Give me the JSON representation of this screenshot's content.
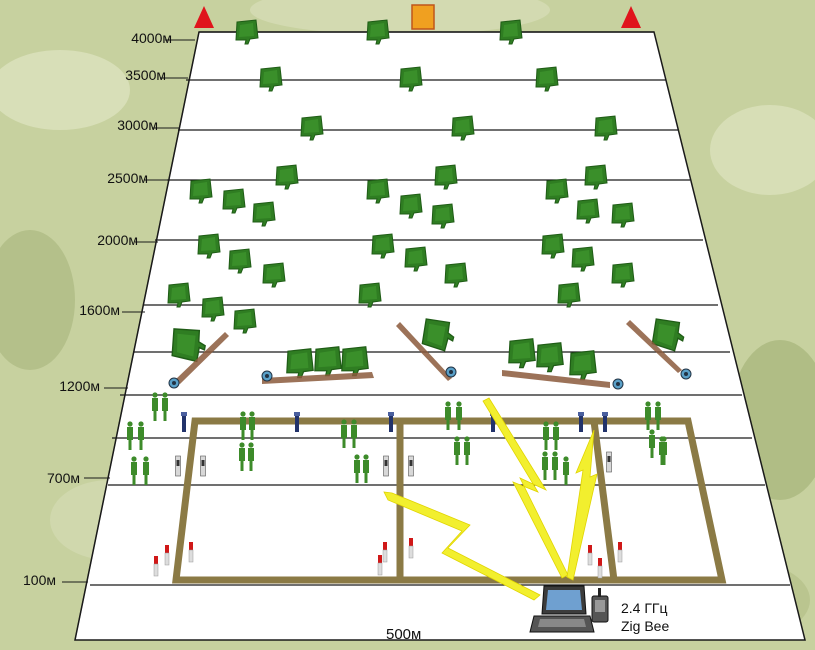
{
  "distance_labels": [
    "4000м",
    "3500м",
    "3000м",
    "2500м",
    "2000м",
    "1600м",
    "1200м",
    "700м",
    "100м"
  ],
  "bottom_width_label": "500м",
  "radio": {
    "frequency": "2.4 ГГц",
    "protocol": "Zig Bee"
  },
  "colors": {
    "camo_light": "#d4dbb2",
    "camo_mid": "#b7c38c",
    "field": "#ffffff",
    "field_lines": "#1a1a1a",
    "tree": "#2f7d22",
    "tree_dark": "#1f5c16",
    "soldier": "#3d8b2a",
    "fence": "#8b7a45",
    "signal": "#f2ef2e",
    "marker_red": "#e0141c",
    "marker_orange": "#f0a020",
    "sensor_blue": "#22336b",
    "sensor_red": "#d01818"
  },
  "icons": {
    "top_markers": [
      "red-triangle-icon",
      "orange-square-icon",
      "red-triangle-icon"
    ],
    "tree": "tree-icon",
    "soldier": "soldier-icon",
    "sensor": "sensor-post-icon",
    "laptop": "laptop-icon",
    "radio_module": "radio-module-icon"
  }
}
